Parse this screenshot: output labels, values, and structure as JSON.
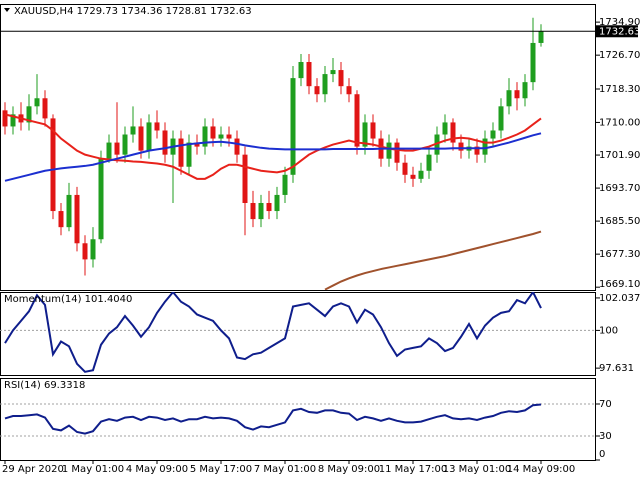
{
  "chart_data": [
    {
      "type": "candlestick",
      "title": "XAUUSD,H4  1729.73 1734.36 1728.81 1732.63",
      "categories": [
        "29 Apr 2020",
        null,
        null,
        null,
        null,
        null,
        null,
        null,
        null,
        null,
        null,
        "1 May 01:00",
        null,
        null,
        null,
        null,
        null,
        null,
        null,
        "4 May 09:00",
        null,
        null,
        null,
        null,
        null,
        null,
        null,
        "5 May 17:00",
        null,
        null,
        null,
        null,
        null,
        null,
        null,
        "7 May 01:00",
        null,
        null,
        null,
        null,
        null,
        null,
        null,
        "8 May 09:00",
        null,
        null,
        null,
        null,
        null,
        null,
        null,
        "11 May 17:00",
        null,
        null,
        null,
        null,
        null,
        null,
        null,
        "13 May 01:00",
        null,
        null,
        null,
        null,
        null,
        null,
        null,
        "14 May 09:00"
      ],
      "open": [
        1713,
        1709,
        1712,
        1710,
        1714,
        1716,
        1711,
        1688,
        1684,
        1692,
        1680,
        1676,
        1681,
        1701,
        1705,
        1702,
        1707,
        1709,
        1703,
        1710,
        1708,
        1702,
        1706,
        1699,
        1705,
        1704,
        1709,
        1706,
        1707,
        1706,
        1702,
        1690,
        1686,
        1690,
        1688,
        1692,
        1697,
        1721,
        1725,
        1719,
        1717,
        1722,
        1723,
        1719,
        1717,
        1704,
        1710,
        1706,
        1701,
        1705,
        1700,
        1697,
        1696,
        1698,
        1702,
        1707,
        1710,
        1705,
        1703,
        1704,
        1702,
        1706,
        1708,
        1714,
        1718,
        1716,
        1720,
        1729.73
      ],
      "high": [
        1715,
        1714,
        1715,
        1717,
        1722,
        1718,
        1712,
        1690,
        1695,
        1694,
        1682,
        1684,
        1703,
        1707,
        1715,
        1709,
        1714,
        1711,
        1712,
        1713,
        1710,
        1708,
        1708,
        1707,
        1707,
        1711,
        1711,
        1709,
        1709,
        1708,
        1704,
        1693,
        1692,
        1693,
        1694,
        1699,
        1724,
        1727,
        1727,
        1721,
        1724,
        1726,
        1725,
        1721,
        1718,
        1712,
        1712,
        1708,
        1707,
        1706,
        1702,
        1699,
        1700,
        1704,
        1709,
        1712,
        1711,
        1707,
        1706,
        1706,
        1708,
        1710,
        1716,
        1721,
        1720,
        1722,
        1736,
        1734.36
      ],
      "low": [
        1707,
        1707,
        1708,
        1708,
        1712,
        1709,
        1686,
        1682,
        1683,
        1678,
        1672,
        1674,
        1680,
        1700,
        1700,
        1700,
        1705,
        1701,
        1701,
        1706,
        1700,
        1690,
        1697,
        1697,
        1702,
        1702,
        1704,
        1704,
        1704,
        1700,
        1682,
        1684,
        1684,
        1686,
        1686,
        1690,
        1695,
        1719,
        1717,
        1715,
        1715,
        1720,
        1717,
        1715,
        1702,
        1702,
        1704,
        1699,
        1699,
        1698,
        1695,
        1694,
        1695,
        1696,
        1700,
        1705,
        1703,
        1701,
        1701,
        1700,
        1700,
        1704,
        1706,
        1712,
        1713,
        1714,
        1718,
        1728.81
      ],
      "close": [
        1709,
        1712,
        1710,
        1714,
        1716,
        1711,
        1688,
        1684,
        1692,
        1680,
        1676,
        1681,
        1701,
        1705,
        1702,
        1707,
        1709,
        1703,
        1710,
        1708,
        1702,
        1706,
        1699,
        1705,
        1704,
        1709,
        1706,
        1707,
        1706,
        1702,
        1690,
        1686,
        1690,
        1688,
        1692,
        1697,
        1721,
        1725,
        1719,
        1717,
        1722,
        1723,
        1719,
        1717,
        1704,
        1710,
        1706,
        1701,
        1705,
        1700,
        1697,
        1696,
        1698,
        1702,
        1707,
        1710,
        1705,
        1703,
        1704,
        1702,
        1706,
        1708,
        1714,
        1718,
        1716,
        1720,
        1729.73,
        1732.63
      ],
      "up_color": "#1f9e1f",
      "down_color": "#e01515",
      "series": [
        {
          "color": "#e8221b",
          "values": [
            1712,
            1711.5,
            1711,
            1710.5,
            1710,
            1709.5,
            1708,
            1706,
            1704.5,
            1703,
            1702,
            1701.5,
            1701,
            1700.8,
            1700.6,
            1700.5,
            1700.3,
            1700.2,
            1700,
            1699.8,
            1699.5,
            1699,
            1698,
            1697,
            1696,
            1696,
            1697,
            1698.5,
            1699.5,
            1699.5,
            1699,
            1698.5,
            1698,
            1697.8,
            1697.6,
            1698,
            1699,
            1700.5,
            1702,
            1703,
            1703.8,
            1704.5,
            1705,
            1705.5,
            1705,
            1704.8,
            1704.5,
            1704,
            1703.5,
            1703.2,
            1703,
            1703,
            1703.5,
            1704,
            1704.8,
            1705.5,
            1706,
            1706.2,
            1706,
            1705.5,
            1705,
            1705,
            1705.5,
            1706.2,
            1707,
            1708,
            1709.5,
            1711
          ]
        },
        {
          "color": "#1c2fd0",
          "values": [
            1695.5,
            1696,
            1696.5,
            1697,
            1697.5,
            1698,
            1698.3,
            1698.6,
            1698.8,
            1699,
            1699.2,
            1699.5,
            1700,
            1700.5,
            1701,
            1701.5,
            1702,
            1702.5,
            1703,
            1703.3,
            1703.6,
            1704,
            1704.3,
            1704.6,
            1704.8,
            1705,
            1705.1,
            1705.2,
            1705,
            1704.7,
            1704.3,
            1704,
            1703.7,
            1703.5,
            1703.4,
            1703.3,
            1703.3,
            1703.3,
            1703.3,
            1703.3,
            1703.3,
            1703.4,
            1703.4,
            1703.4,
            1703.4,
            1703.4,
            1703.4,
            1703.5,
            1703.5,
            1703.5,
            1703.5,
            1703.5,
            1703.5,
            1703.5,
            1703.5,
            1703.5,
            1703.6,
            1703.6,
            1703.6,
            1703.6,
            1703.6,
            1704,
            1704.5,
            1705,
            1705.6,
            1706.2,
            1706.8,
            1707.3
          ]
        },
        {
          "color": "#a0522d",
          "values": [
            null,
            null,
            null,
            null,
            null,
            null,
            null,
            null,
            null,
            null,
            null,
            null,
            null,
            null,
            null,
            null,
            null,
            null,
            null,
            null,
            null,
            null,
            null,
            null,
            null,
            null,
            null,
            null,
            null,
            null,
            null,
            null,
            null,
            null,
            null,
            null,
            null,
            null,
            null,
            null,
            1668.5,
            1669.5,
            1670.5,
            1671.3,
            1672,
            1672.6,
            1673.1,
            1673.6,
            1674,
            1674.4,
            1674.8,
            1675.2,
            1675.6,
            1676,
            1676.4,
            1676.8,
            1677.3,
            1677.8,
            1678.3,
            1678.8,
            1679.3,
            1679.8,
            1680.3,
            1680.8,
            1681.3,
            1681.8,
            1682.3,
            1682.9
          ]
        }
      ],
      "ylim": [
        1668.4,
        1739.4
      ],
      "yticks": [
        {
          "value": 1734.9,
          "label": "1734.90"
        },
        {
          "value": 1726.7,
          "label": "1726.70"
        },
        {
          "value": 1718.3,
          "label": "1718.30"
        },
        {
          "value": 1710,
          "label": "1710.00"
        },
        {
          "value": 1701.9,
          "label": "1701.90"
        },
        {
          "value": 1693.7,
          "label": "1693.70"
        },
        {
          "value": 1685.5,
          "label": "1685.50"
        },
        {
          "value": 1677.3,
          "label": "1677.30"
        },
        {
          "value": 1669.1,
          "label": "1669.10"
        }
      ],
      "last_price": 1732.63
    },
    {
      "type": "line",
      "title": "Momentum(14) 101.4040",
      "series": [
        {
          "color": "#0f1e8c",
          "values": [
            99.2,
            100,
            100.6,
            101.2,
            102.2,
            101.6,
            98.5,
            99.3,
            99,
            97.9,
            97.4,
            97.5,
            99.1,
            99.8,
            100.2,
            100.9,
            100.3,
            99.6,
            100.2,
            101.1,
            101.8,
            102.4,
            101.8,
            101.5,
            101,
            100.8,
            100.6,
            100,
            99.5,
            98.3,
            98.2,
            98.5,
            98.6,
            98.9,
            99.2,
            99.5,
            101.5,
            101.6,
            101.7,
            101.3,
            100.9,
            101.5,
            101.7,
            101.5,
            100.5,
            101.3,
            101,
            100.2,
            99.2,
            98.4,
            98.8,
            98.9,
            99,
            99.5,
            99.2,
            98.7,
            98.9,
            99.6,
            100.4,
            99.5,
            100.3,
            100.8,
            101.1,
            101.2,
            101.9,
            101.7,
            102.4,
            101.404
          ]
        }
      ],
      "ylim": [
        97.2,
        102.41
      ],
      "yticks": [
        102.0379,
        100,
        97.631
      ],
      "levels": [
        100
      ]
    },
    {
      "type": "line",
      "title": "RSI(14) 69.3318",
      "series": [
        {
          "color": "#0f1e8c",
          "values": [
            52,
            55,
            55,
            56,
            57,
            53,
            39,
            37,
            43,
            35,
            33,
            36,
            48,
            51,
            49,
            53,
            54,
            50,
            54,
            53,
            50,
            52,
            48,
            51,
            51,
            54,
            52,
            53,
            52,
            49,
            41,
            38,
            42,
            41,
            44,
            47,
            62,
            64,
            60,
            59,
            62,
            62,
            59,
            58,
            50,
            54,
            52,
            49,
            52,
            49,
            47,
            47,
            48,
            51,
            54,
            56,
            52,
            51,
            52,
            50,
            53,
            55,
            59,
            61,
            60,
            62,
            68.5,
            69.3318
          ]
        }
      ],
      "ylim": [
        0,
        102.5
      ],
      "yticks": [
        70,
        30,
        0
      ],
      "levels": [
        70,
        30
      ]
    }
  ]
}
